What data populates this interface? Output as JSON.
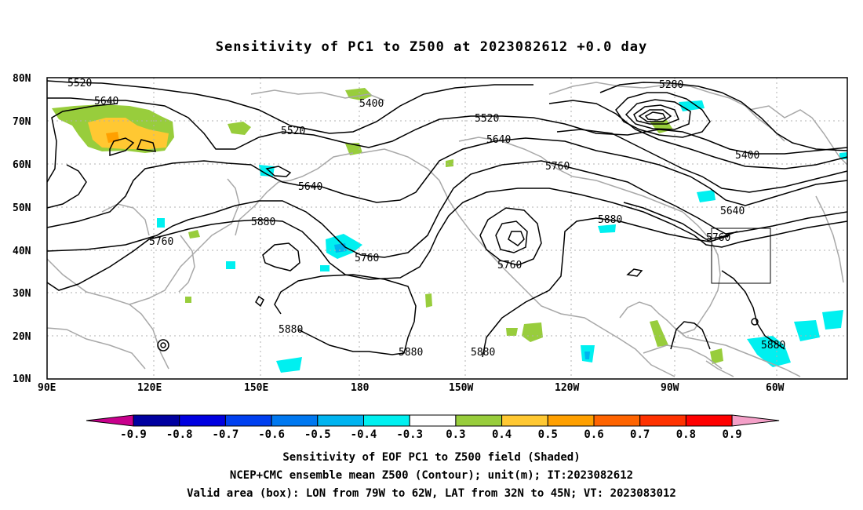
{
  "title": "Sensitivity of PC1 to Z500 at 2023082612 +0.0 day",
  "map": {
    "lon_range": [
      "90E",
      "30W"
    ],
    "lat_range": [
      "10N",
      "80N"
    ],
    "lat_labels": [
      "80N",
      "70N",
      "60N",
      "50N",
      "40N",
      "30N",
      "20N",
      "10N"
    ],
    "lon_labels": [
      "90E",
      "120E",
      "150E",
      "180",
      "150W",
      "120W",
      "90W",
      "60W"
    ],
    "contour_labels": [
      {
        "text": "5520"
      },
      {
        "text": "5640"
      },
      {
        "text": "5400"
      },
      {
        "text": "5520"
      },
      {
        "text": "5280"
      },
      {
        "text": "5520"
      },
      {
        "text": "5640"
      },
      {
        "text": "5760"
      },
      {
        "text": "5400"
      },
      {
        "text": "5640"
      },
      {
        "text": "5760"
      },
      {
        "text": "5760"
      },
      {
        "text": "5880"
      },
      {
        "text": "5760"
      },
      {
        "text": "5760"
      },
      {
        "text": "5880"
      },
      {
        "text": "5880"
      },
      {
        "text": "5880"
      },
      {
        "text": "5880"
      },
      {
        "text": "5880"
      },
      {
        "text": "5640"
      }
    ],
    "valid_box": {
      "lon": [
        "79W",
        "62W"
      ],
      "lat": [
        "32N",
        "45N"
      ]
    }
  },
  "colorbar": {
    "labels": [
      "-0.9",
      "-0.8",
      "-0.7",
      "-0.6",
      "-0.5",
      "-0.4",
      "-0.3",
      "0.3",
      "0.4",
      "0.5",
      "0.6",
      "0.7",
      "0.8",
      "0.9"
    ],
    "colors": [
      "#0000a0",
      "#0000e0",
      "#0040f0",
      "#0078f0",
      "#00b4f0",
      "#00f0f0",
      "#ffffff",
      "#98cd3c",
      "#ffc832",
      "#ffa000",
      "#ff6400",
      "#ff3200",
      "#ff0000"
    ],
    "low_end_color": "#c8008c",
    "high_end_color": "#f4a0c8"
  },
  "footer": {
    "line1": "Sensitivity of EOF PC1 to Z500 field (Shaded)",
    "line2": "NCEP+CMC ensemble mean Z500 (Contour); unit(m); IT:2023082612",
    "line3": "Valid area (box): LON from 79W to 62W, LAT from 32N to 45N; VT: 2023083012"
  }
}
